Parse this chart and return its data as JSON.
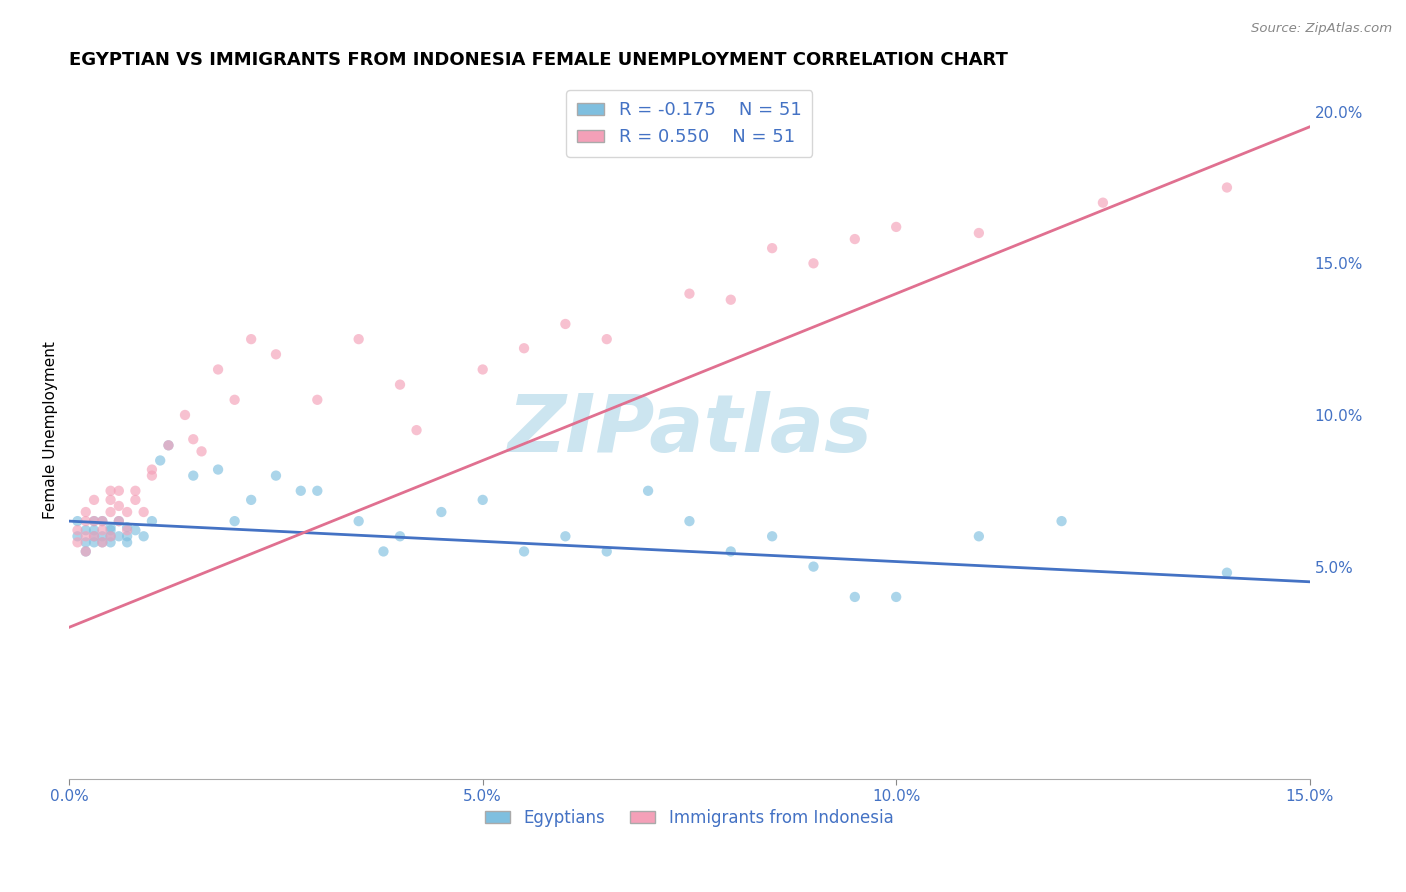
{
  "title": "EGYPTIAN VS IMMIGRANTS FROM INDONESIA FEMALE UNEMPLOYMENT CORRELATION CHART",
  "source": "Source: ZipAtlas.com",
  "ylabel": "Female Unemployment",
  "xlim": [
    0.0,
    0.15
  ],
  "ylim": [
    -0.02,
    0.21
  ],
  "yticks_right": [
    0.05,
    0.1,
    0.15,
    0.2
  ],
  "ytick_labels_right": [
    "5.0%",
    "10.0%",
    "15.0%",
    "20.0%"
  ],
  "xticks": [
    0.0,
    0.05,
    0.1,
    0.15
  ],
  "xtick_labels": [
    "0.0%",
    "5.0%",
    "10.0%",
    "15.0%"
  ],
  "blue_color": "#7fbfdf",
  "pink_color": "#f4a0b8",
  "trend_blue": "#4472c4",
  "trend_pink": "#e07090",
  "watermark": "ZIPatlas",
  "legend_R_blue": "R = -0.175",
  "legend_N_blue": "N = 51",
  "legend_R_pink": "R = 0.550",
  "legend_N_pink": "N = 51",
  "legend_label_blue": "Egyptians",
  "legend_label_pink": "Immigrants from Indonesia",
  "blue_scatter_x": [
    0.001,
    0.001,
    0.002,
    0.002,
    0.002,
    0.003,
    0.003,
    0.003,
    0.003,
    0.004,
    0.004,
    0.004,
    0.005,
    0.005,
    0.005,
    0.005,
    0.006,
    0.006,
    0.007,
    0.007,
    0.007,
    0.008,
    0.009,
    0.01,
    0.011,
    0.012,
    0.015,
    0.018,
    0.02,
    0.022,
    0.025,
    0.028,
    0.03,
    0.035,
    0.038,
    0.04,
    0.045,
    0.05,
    0.055,
    0.06,
    0.065,
    0.07,
    0.075,
    0.08,
    0.085,
    0.09,
    0.095,
    0.1,
    0.11,
    0.12,
    0.14
  ],
  "blue_scatter_y": [
    0.06,
    0.065,
    0.055,
    0.062,
    0.058,
    0.06,
    0.065,
    0.058,
    0.062,
    0.06,
    0.058,
    0.065,
    0.062,
    0.06,
    0.058,
    0.063,
    0.06,
    0.065,
    0.058,
    0.06,
    0.063,
    0.062,
    0.06,
    0.065,
    0.085,
    0.09,
    0.08,
    0.082,
    0.065,
    0.072,
    0.08,
    0.075,
    0.075,
    0.065,
    0.055,
    0.06,
    0.068,
    0.072,
    0.055,
    0.06,
    0.055,
    0.075,
    0.065,
    0.055,
    0.06,
    0.05,
    0.04,
    0.04,
    0.06,
    0.065,
    0.048
  ],
  "pink_scatter_x": [
    0.001,
    0.001,
    0.002,
    0.002,
    0.002,
    0.002,
    0.003,
    0.003,
    0.003,
    0.004,
    0.004,
    0.004,
    0.005,
    0.005,
    0.005,
    0.005,
    0.006,
    0.006,
    0.006,
    0.007,
    0.007,
    0.008,
    0.008,
    0.009,
    0.01,
    0.01,
    0.012,
    0.014,
    0.015,
    0.016,
    0.018,
    0.02,
    0.022,
    0.025,
    0.03,
    0.035,
    0.04,
    0.042,
    0.05,
    0.055,
    0.06,
    0.065,
    0.075,
    0.08,
    0.085,
    0.09,
    0.095,
    0.1,
    0.11,
    0.125,
    0.14
  ],
  "pink_scatter_y": [
    0.058,
    0.062,
    0.055,
    0.06,
    0.065,
    0.068,
    0.06,
    0.065,
    0.072,
    0.058,
    0.062,
    0.065,
    0.06,
    0.072,
    0.068,
    0.075,
    0.065,
    0.07,
    0.075,
    0.062,
    0.068,
    0.072,
    0.075,
    0.068,
    0.08,
    0.082,
    0.09,
    0.1,
    0.092,
    0.088,
    0.115,
    0.105,
    0.125,
    0.12,
    0.105,
    0.125,
    0.11,
    0.095,
    0.115,
    0.122,
    0.13,
    0.125,
    0.14,
    0.138,
    0.155,
    0.15,
    0.158,
    0.162,
    0.16,
    0.17,
    0.175
  ],
  "blue_trend_x": [
    0.0,
    0.15
  ],
  "blue_trend_y": [
    0.065,
    0.045
  ],
  "pink_trend_x": [
    0.0,
    0.15
  ],
  "pink_trend_y": [
    0.03,
    0.195
  ],
  "background_color": "#ffffff",
  "grid_color": "#cccccc",
  "title_fontsize": 13,
  "axis_label_fontsize": 11,
  "tick_fontsize": 11,
  "scatter_size": 55,
  "scatter_alpha": 0.65,
  "watermark_color": "#cce5f0",
  "watermark_fontsize": 58
}
